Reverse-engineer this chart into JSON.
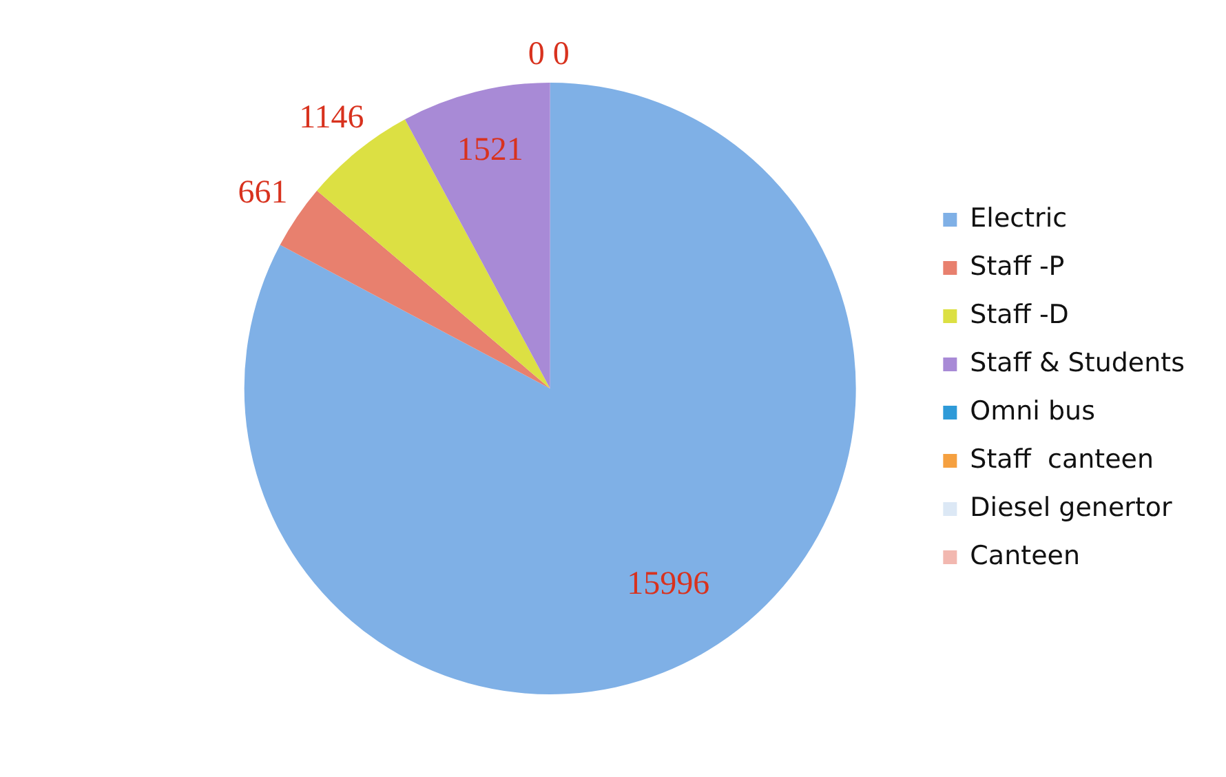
{
  "chart_data": {
    "type": "pie",
    "categories": [
      "Electric",
      "Staff -P",
      "Staff -D",
      "Staff & Students",
      "Omni bus",
      "Staff  canteen",
      "Diesel genertor",
      "Canteen"
    ],
    "values": [
      15996,
      661,
      1146,
      1521,
      0,
      0,
      null,
      null
    ],
    "colors": [
      "#7fb0e6",
      "#e8806e",
      "#dce043",
      "#a88ad6",
      "#2e9ad8",
      "#f5a040",
      "#dce8f5",
      "#f2b8b0"
    ],
    "value_labels": [
      "15996",
      "661",
      "1146",
      "1521",
      "0",
      "0",
      null,
      null
    ],
    "legend": "right"
  }
}
